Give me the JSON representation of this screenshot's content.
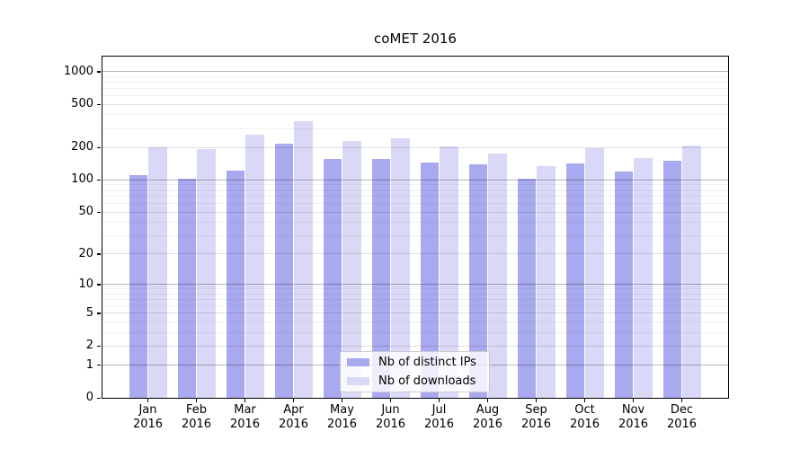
{
  "title": "coMET 2016",
  "chart_data": {
    "type": "bar",
    "title": "coMET 2016",
    "categories": [
      "Jan 2016",
      "Feb 2016",
      "Mar 2016",
      "Apr 2016",
      "May 2016",
      "Jun 2016",
      "Jul 2016",
      "Aug 2016",
      "Sep 2016",
      "Oct 2016",
      "Nov 2016",
      "Dec 2016"
    ],
    "series": [
      {
        "name": "Nb of distinct IPs",
        "color": "#a9a9f0",
        "values": [
          111,
          103,
          122,
          217,
          156,
          158,
          145,
          139,
          102,
          142,
          121,
          150
        ]
      },
      {
        "name": "Nb of downloads",
        "color": "#d9d9f7",
        "values": [
          200,
          194,
          263,
          348,
          230,
          245,
          206,
          177,
          134,
          199,
          161,
          208
        ]
      }
    ],
    "yscale": "log1p",
    "ylim": [
      0,
      1380
    ],
    "yticks": [
      1000,
      500,
      200,
      100,
      50,
      20,
      10,
      5,
      2,
      1,
      0
    ],
    "xlabel": "",
    "ylabel": "",
    "grid": true,
    "legend_position": "lower center"
  },
  "legend": {
    "items": [
      {
        "label": "Nb of distinct IPs",
        "color": "#a9a9f0"
      },
      {
        "label": "Nb of downloads",
        "color": "#d9d9f7"
      }
    ]
  }
}
